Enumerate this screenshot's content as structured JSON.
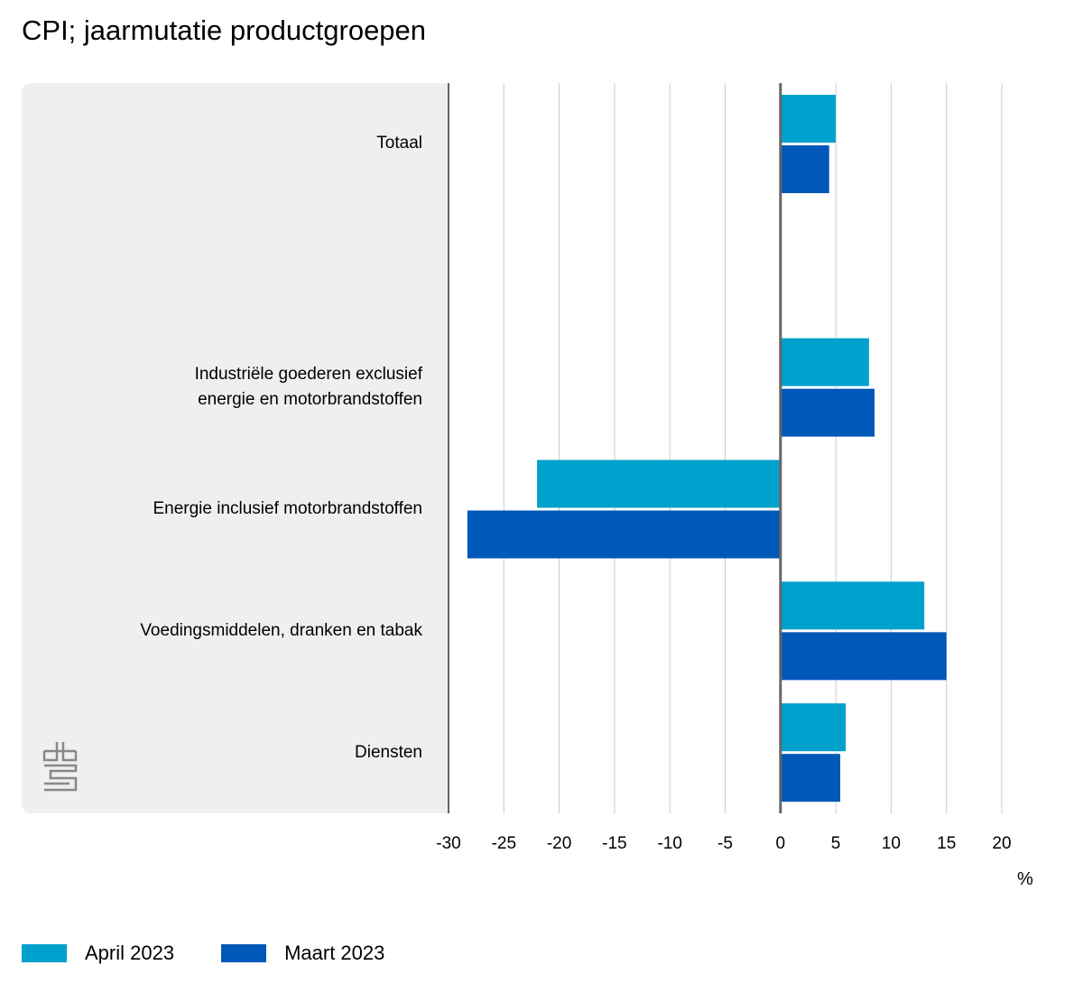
{
  "chart_data": {
    "type": "bar",
    "orientation": "horizontal",
    "title": "CPI; jaarmutatie productgroepen",
    "xlabel": "%",
    "categories": [
      "Totaal",
      "",
      "Industriële goederen exclusief energie en motorbrandstoffen",
      "Energie inclusief motorbrandstoffen",
      "Voedingsmiddelen, dranken en tabak",
      "Diensten"
    ],
    "category_lines": [
      [
        "Totaal"
      ],
      [],
      [
        "Industriële goederen exclusief",
        "energie en motorbrandstoffen"
      ],
      [
        "Energie inclusief motorbrandstoffen"
      ],
      [
        "Voedingsmiddelen, dranken en tabak"
      ],
      [
        "Diensten"
      ]
    ],
    "series": [
      {
        "name": "April 2023",
        "color": "#00a1cd",
        "values": [
          5.0,
          null,
          8.0,
          -22.0,
          13.0,
          5.9
        ]
      },
      {
        "name": "Maart 2023",
        "color": "#0058b8",
        "values": [
          4.4,
          null,
          8.5,
          -28.3,
          15.0,
          5.4
        ]
      }
    ],
    "xlim": [
      -30,
      20
    ],
    "xticks": [
      -30,
      -25,
      -20,
      -15,
      -10,
      -5,
      0,
      5,
      10,
      15,
      20
    ],
    "grid": true,
    "legend": "bottom-left",
    "logo": "cbs"
  }
}
